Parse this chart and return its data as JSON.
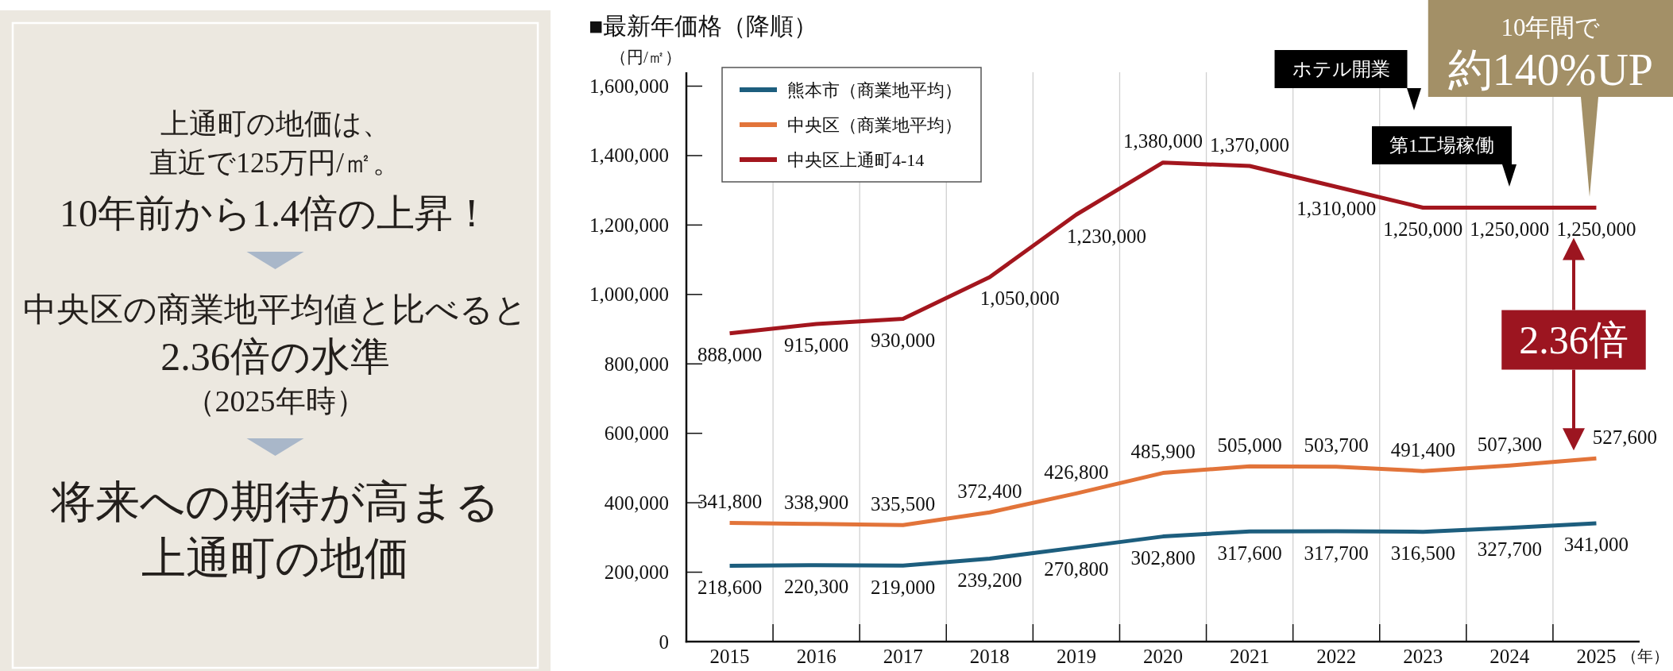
{
  "chart_data": [
    {
      "type": "other",
      "annotations": [
        "上通町の地価は、",
        "直近で125万円/㎡。",
        "10年前から1.4倍の上昇！",
        "中央区の商業地平均値と比べると",
        "2.36倍の水準",
        "（2025年時）",
        "将来への期待が高まる",
        "上通町の地価"
      ]
    },
    {
      "type": "line",
      "title": "■最新年価格（降順）",
      "ylabel": "（円/㎡）",
      "xlabel": "（年）",
      "categories": [
        "2015",
        "2016",
        "2017",
        "2018",
        "2019",
        "2020",
        "2021",
        "2022",
        "2023",
        "2024",
        "2025"
      ],
      "series": [
        {
          "name": "熊本市（商業地平均）",
          "color": "#1d5e7e",
          "values": [
            218600,
            220300,
            219000,
            239200,
            270800,
            302800,
            317600,
            317700,
            316500,
            327700,
            341000
          ],
          "value_labels": [
            "218,600",
            "220,300",
            "219,000",
            "239,200",
            "270,800",
            "302,800",
            "317,600",
            "317,700",
            "316,500",
            "327,700",
            "341,000"
          ]
        },
        {
          "name": "中央区（商業地平均）",
          "color": "#e2743a",
          "values": [
            341800,
            338900,
            335500,
            372400,
            426800,
            485900,
            505000,
            503700,
            491400,
            507300,
            527600
          ],
          "value_labels": [
            "341,800",
            "338,900",
            "335,500",
            "372,400",
            "426,800",
            "485,900",
            "505,000",
            "503,700",
            "491,400",
            "507,300",
            "527,600"
          ]
        },
        {
          "name": "中央区上通町4-14",
          "color": "#a3161e",
          "values": [
            888000,
            915000,
            930000,
            1050000,
            1230000,
            1380000,
            1370000,
            1310000,
            1250000,
            1250000,
            1250000
          ],
          "value_labels": [
            "888,000",
            "915,000",
            "930,000",
            "1,050,000",
            "1,230,000",
            "1,380,000",
            "1,370,000",
            "1,310,000",
            "1,250,000",
            "1,250,000",
            "1,250,000"
          ]
        }
      ],
      "ylim": [
        0,
        1640000
      ],
      "yticks": [
        0,
        {
          "value": 200000,
          "label": "200,000"
        },
        {
          "value": 400000,
          "label": "400,000"
        },
        {
          "value": 600000,
          "label": "600,000"
        },
        {
          "value": 800000,
          "label": "800,000"
        },
        {
          "value": 1000000,
          "label": "1,000,000"
        },
        {
          "value": 1200000,
          "label": "1,200,000"
        },
        {
          "value": 1400000,
          "label": "1,400,000"
        },
        {
          "value": 1600000,
          "label": "1,600,000"
        }
      ],
      "grid": "x",
      "legend": "top left",
      "annotations": [
        "ホテル開業",
        "第1工場稼働",
        "10年間で",
        "約140%UP",
        "2.36倍"
      ]
    }
  ]
}
